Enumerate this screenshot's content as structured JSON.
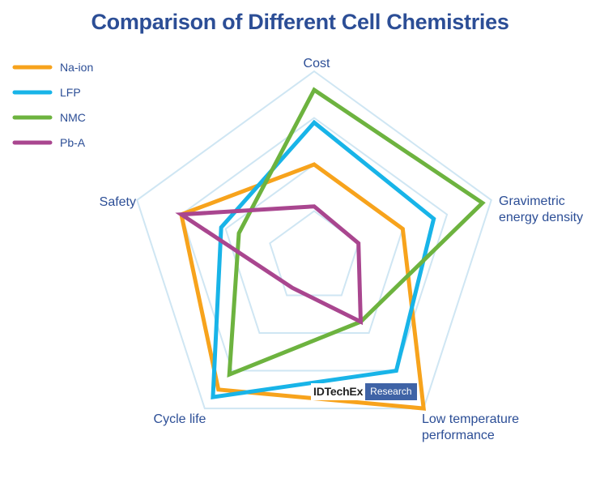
{
  "chart_data": {
    "type": "radar",
    "title": "Comparison of Different Cell Chemistries",
    "axes": [
      [
        "Cost"
      ],
      [
        "Gravimetric",
        "energy density"
      ],
      [
        "Low temperature",
        "performance"
      ],
      [
        "Cycle life"
      ],
      [
        "Safety"
      ]
    ],
    "rings": 4,
    "range": [
      0,
      4
    ],
    "series": [
      {
        "name": "Na-ion",
        "color": "#f7a31c",
        "values": [
          2.0,
          2.0,
          4.0,
          3.5,
          3.0
        ]
      },
      {
        "name": "LFP",
        "color": "#18b4e8",
        "values": [
          2.9,
          2.7,
          3.0,
          3.7,
          2.1
        ]
      },
      {
        "name": "NMC",
        "color": "#6db33f",
        "values": [
          3.6,
          3.8,
          1.7,
          3.1,
          1.7
        ]
      },
      {
        "name": "Pb-A",
        "color": "#a9468f",
        "values": [
          1.1,
          1.0,
          1.7,
          0.8,
          3.0
        ]
      }
    ],
    "gridColor": "#cfe6f3"
  },
  "watermark": {
    "brand": "IDTechEx",
    "tag": "Research"
  }
}
